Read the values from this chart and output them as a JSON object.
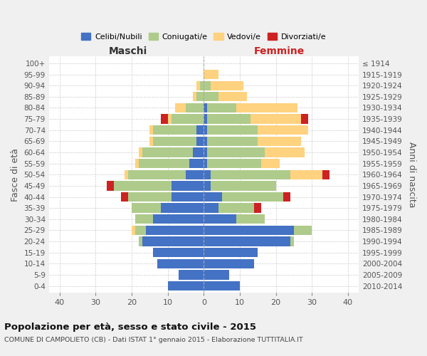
{
  "age_groups": [
    "0-4",
    "5-9",
    "10-14",
    "15-19",
    "20-24",
    "25-29",
    "30-34",
    "35-39",
    "40-44",
    "45-49",
    "50-54",
    "55-59",
    "60-64",
    "65-69",
    "70-74",
    "75-79",
    "80-84",
    "85-89",
    "90-94",
    "95-99",
    "100+"
  ],
  "birth_years": [
    "2010-2014",
    "2005-2009",
    "2000-2004",
    "1995-1999",
    "1990-1994",
    "1985-1989",
    "1980-1984",
    "1975-1979",
    "1970-1974",
    "1965-1969",
    "1960-1964",
    "1955-1959",
    "1950-1954",
    "1945-1949",
    "1940-1944",
    "1935-1939",
    "1930-1934",
    "1925-1929",
    "1920-1924",
    "1915-1919",
    "≤ 1914"
  ],
  "male": {
    "celibi": [
      10,
      7,
      13,
      14,
      17,
      16,
      14,
      12,
      9,
      9,
      5,
      4,
      3,
      2,
      2,
      0,
      0,
      0,
      0,
      0,
      0
    ],
    "coniugati": [
      0,
      0,
      0,
      0,
      1,
      3,
      5,
      8,
      12,
      16,
      16,
      14,
      14,
      12,
      12,
      9,
      5,
      2,
      1,
      0,
      0
    ],
    "vedovi": [
      0,
      0,
      0,
      0,
      0,
      1,
      0,
      0,
      0,
      0,
      1,
      1,
      1,
      1,
      1,
      1,
      3,
      1,
      1,
      0,
      0
    ],
    "divorziati": [
      0,
      0,
      0,
      0,
      0,
      0,
      0,
      0,
      2,
      2,
      0,
      0,
      0,
      0,
      0,
      2,
      0,
      0,
      0,
      0,
      0
    ]
  },
  "female": {
    "nubili": [
      10,
      7,
      14,
      15,
      24,
      25,
      9,
      4,
      5,
      2,
      2,
      1,
      1,
      1,
      1,
      1,
      1,
      0,
      0,
      0,
      0
    ],
    "coniugate": [
      0,
      0,
      0,
      0,
      1,
      5,
      8,
      10,
      17,
      18,
      22,
      15,
      16,
      14,
      14,
      12,
      8,
      4,
      2,
      0,
      0
    ],
    "vedove": [
      0,
      0,
      0,
      0,
      0,
      0,
      0,
      0,
      0,
      0,
      9,
      5,
      11,
      12,
      14,
      14,
      17,
      8,
      9,
      4,
      0
    ],
    "divorziate": [
      0,
      0,
      0,
      0,
      0,
      0,
      0,
      2,
      2,
      0,
      2,
      0,
      0,
      0,
      0,
      2,
      0,
      0,
      0,
      0,
      0
    ]
  },
  "colors": {
    "celibi_nubili": "#4472C4",
    "coniugati": "#AECB8B",
    "vedovi": "#FFD27F",
    "divorziati": "#CC2222"
  },
  "xlim": 43,
  "title": "Popolazione per età, sesso e stato civile - 2015",
  "subtitle": "COMUNE DI CAMPOLIETO (CB) - Dati ISTAT 1° gennaio 2015 - Elaborazione TUTTITALIA.IT",
  "ylabel_left": "Fasce di età",
  "ylabel_right": "Anni di nascita",
  "xlabel_left": "Maschi",
  "xlabel_right": "Femmine",
  "legend_labels": [
    "Celibi/Nubili",
    "Coniugati/e",
    "Vedovi/e",
    "Divorziati/e"
  ],
  "bg_color": "#f0f0f0",
  "plot_bg": "#ffffff",
  "bar_height": 0.85
}
